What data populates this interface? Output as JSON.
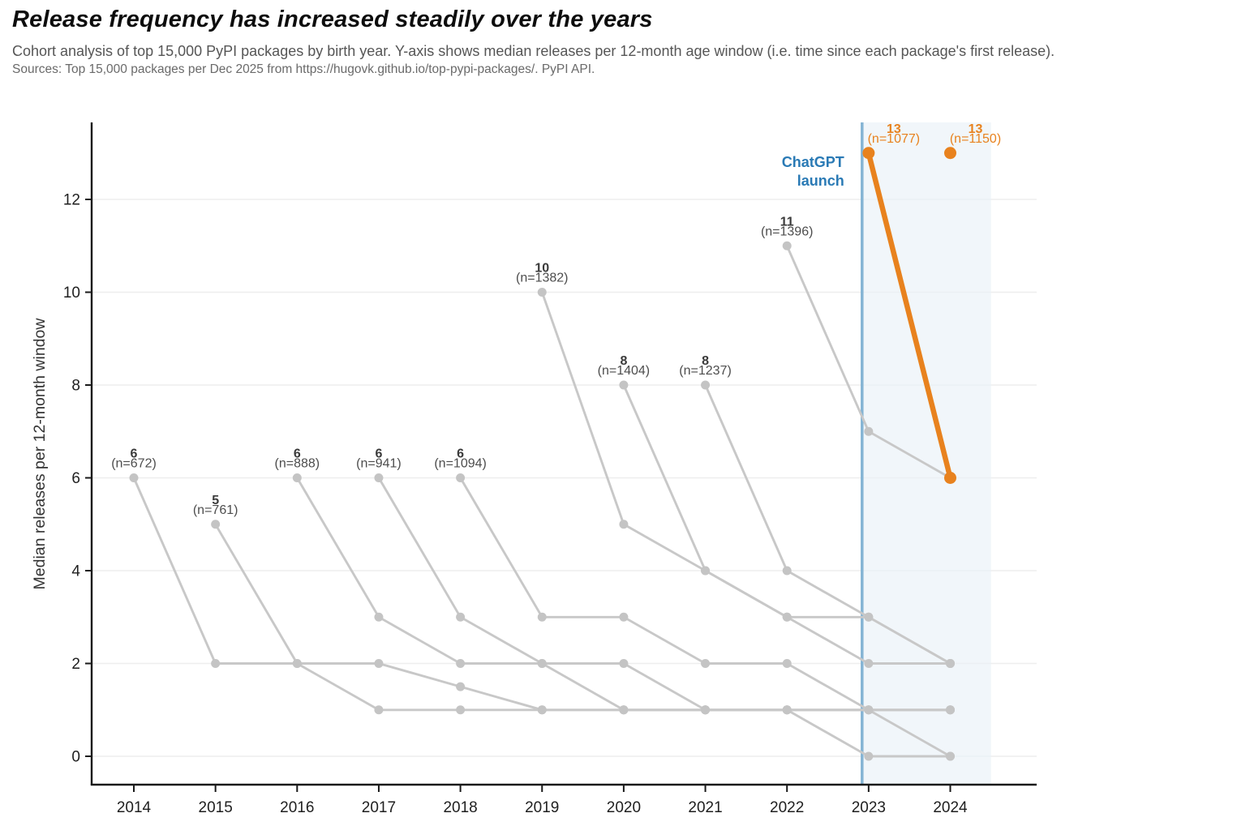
{
  "header": {
    "title": "Release frequency has increased steadily over the years",
    "subtitle": "Cohort analysis of top 15,000 PyPI packages by birth year. Y-axis shows median releases per 12-month age window (i.e. time since each package's first release).",
    "source": "Sources: Top 15,000 packages per Dec 2025 from https://hugovk.github.io/top-pypi-packages/. PyPI API."
  },
  "chart_data": {
    "type": "line",
    "title": "Release frequency has increased steadily over the years",
    "ylabel": "Median releases per 12-month window",
    "xlabel": "",
    "xticks": [
      2014,
      2015,
      2016,
      2017,
      2018,
      2019,
      2020,
      2021,
      2022,
      2023,
      2024
    ],
    "yticks": [
      0,
      2,
      4,
      6,
      8,
      10,
      12
    ],
    "xlim": [
      2013.5,
      2025.05
    ],
    "ylim": [
      -0.6,
      13.7
    ],
    "grid": "horizontal",
    "legend": "none",
    "colors": {
      "cohort_gray": "#c8c8c8",
      "marker_gray": "#c4c4c4",
      "highlight_orange": "#e8821e",
      "value_label": "#3a3a3a",
      "n_label": "#4d4d4d",
      "tick_label": "#1f1f1f",
      "axis_spine": "#1a1a1a",
      "gridline": "#eeeeee",
      "band_fill": "#e9f1f7",
      "event_line_blue": "#85b4d4",
      "event_text_blue": "#2a7ab5"
    },
    "annotations": {
      "event_label_line1": "ChatGPT",
      "event_label_line2": "launch",
      "event_x": 2022.92,
      "band_x_range": [
        2022.92,
        2024.5
      ]
    },
    "series": [
      {
        "birth_year": "2014",
        "n": 672,
        "peak_label": "6",
        "n_label": "(n=672)",
        "highlight": false,
        "label_dx": 0,
        "points": [
          [
            2014,
            6
          ],
          [
            2015,
            2
          ],
          [
            2016,
            2
          ],
          [
            2017,
            1
          ],
          [
            2018,
            1
          ],
          [
            2019,
            1
          ],
          [
            2020,
            1
          ],
          [
            2021,
            1
          ],
          [
            2022,
            1
          ],
          [
            2023,
            0
          ],
          [
            2024,
            0
          ]
        ]
      },
      {
        "birth_year": "2015",
        "n": 761,
        "peak_label": "5",
        "n_label": "(n=761)",
        "highlight": false,
        "label_dx": 0,
        "points": [
          [
            2015,
            5
          ],
          [
            2016,
            2
          ],
          [
            2017,
            2
          ],
          [
            2018,
            1.5
          ],
          [
            2019,
            1
          ],
          [
            2020,
            1
          ],
          [
            2021,
            1
          ],
          [
            2022,
            1
          ],
          [
            2023,
            1
          ],
          [
            2024,
            0
          ]
        ]
      },
      {
        "birth_year": "2016",
        "n": 888,
        "peak_label": "6",
        "n_label": "(n=888)",
        "highlight": false,
        "label_dx": 0,
        "points": [
          [
            2016,
            6
          ],
          [
            2017,
            3
          ],
          [
            2018,
            2
          ],
          [
            2019,
            2
          ],
          [
            2020,
            2
          ],
          [
            2021,
            1
          ],
          [
            2022,
            1
          ],
          [
            2023,
            1
          ],
          [
            2024,
            1
          ]
        ]
      },
      {
        "birth_year": "2017",
        "n": 941,
        "peak_label": "6",
        "n_label": "(n=941)",
        "highlight": false,
        "label_dx": 0,
        "points": [
          [
            2017,
            6
          ],
          [
            2018,
            3
          ],
          [
            2019,
            2
          ],
          [
            2020,
            1
          ],
          [
            2021,
            1
          ],
          [
            2022,
            1
          ],
          [
            2023,
            1
          ],
          [
            2024,
            1
          ]
        ]
      },
      {
        "birth_year": "2018",
        "n": 1094,
        "peak_label": "6",
        "n_label": "(n=1094)",
        "highlight": false,
        "label_dx": 0,
        "points": [
          [
            2018,
            6
          ],
          [
            2019,
            3
          ],
          [
            2020,
            3
          ],
          [
            2021,
            2
          ],
          [
            2022,
            2
          ],
          [
            2023,
            1
          ],
          [
            2024,
            1
          ]
        ]
      },
      {
        "birth_year": "2019",
        "n": 1382,
        "peak_label": "10",
        "n_label": "(n=1382)",
        "highlight": false,
        "label_dx": 0,
        "points": [
          [
            2019,
            10
          ],
          [
            2020,
            5
          ],
          [
            2021,
            4
          ],
          [
            2022,
            3
          ],
          [
            2023,
            3
          ],
          [
            2024,
            2
          ]
        ]
      },
      {
        "birth_year": "2020",
        "n": 1404,
        "peak_label": "8",
        "n_label": "(n=1404)",
        "highlight": false,
        "label_dx": 0,
        "points": [
          [
            2020,
            8
          ],
          [
            2021,
            4
          ],
          [
            2022,
            3
          ],
          [
            2023,
            2
          ],
          [
            2024,
            2
          ]
        ]
      },
      {
        "birth_year": "2021",
        "n": 1237,
        "peak_label": "8",
        "n_label": "(n=1237)",
        "highlight": false,
        "label_dx": 0,
        "points": [
          [
            2021,
            8
          ],
          [
            2022,
            4
          ],
          [
            2023,
            3
          ],
          [
            2024,
            2
          ]
        ]
      },
      {
        "birth_year": "2022",
        "n": 1396,
        "peak_label": "11",
        "n_label": "(n=1396)",
        "highlight": false,
        "label_dx": 0,
        "points": [
          [
            2022,
            11
          ],
          [
            2023,
            7
          ],
          [
            2024,
            6
          ]
        ]
      },
      {
        "birth_year": "2023",
        "n": 1077,
        "peak_label": "13",
        "n_label": "(n=1077)",
        "highlight": true,
        "label_dx": 31,
        "points": [
          [
            2023,
            13
          ],
          [
            2024,
            6
          ]
        ]
      },
      {
        "birth_year": "2024",
        "n": 1150,
        "peak_label": "13",
        "n_label": "(n=1150)",
        "highlight": true,
        "label_dx": 31,
        "points": [
          [
            2024,
            13
          ]
        ]
      }
    ]
  }
}
